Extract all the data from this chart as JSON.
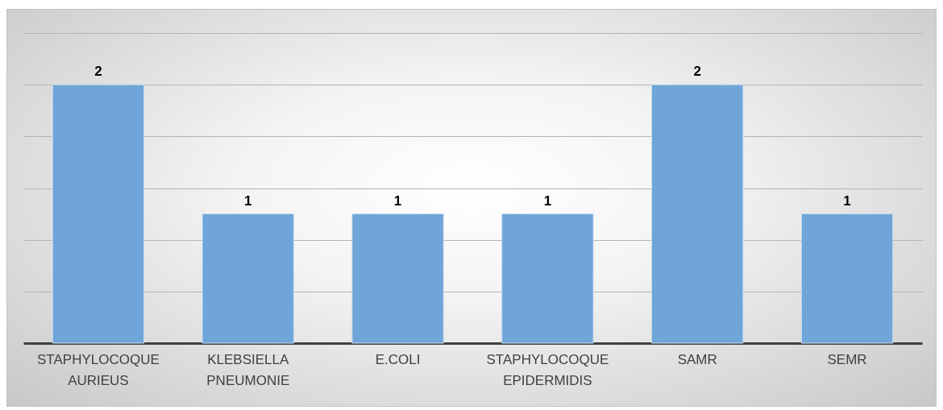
{
  "chart_data": {
    "type": "bar",
    "categories": [
      "STAPHYLOCOQUE AURIEUS",
      "KLEBSIELLA PNEUMONIE",
      "E.COLI",
      "STAPHYLOCOQUE EPIDERMIDIS",
      "SAMR",
      "SEMR"
    ],
    "values": [
      2,
      1,
      1,
      1,
      2,
      1
    ],
    "color": "#6fa5d8",
    "ylim": [
      0,
      2.4
    ],
    "yticks": [
      {
        "value": 0,
        "label": null
      },
      {
        "value": 0.4,
        "label": null
      },
      {
        "value": 0.8,
        "label": null
      },
      {
        "value": 1.2,
        "label": null
      },
      {
        "value": 1.6,
        "label": null
      },
      {
        "value": 2,
        "label": null
      },
      {
        "value": 2.4,
        "label": null
      }
    ],
    "grid": "y",
    "tick_labels": "x",
    "data_labels": true
  }
}
